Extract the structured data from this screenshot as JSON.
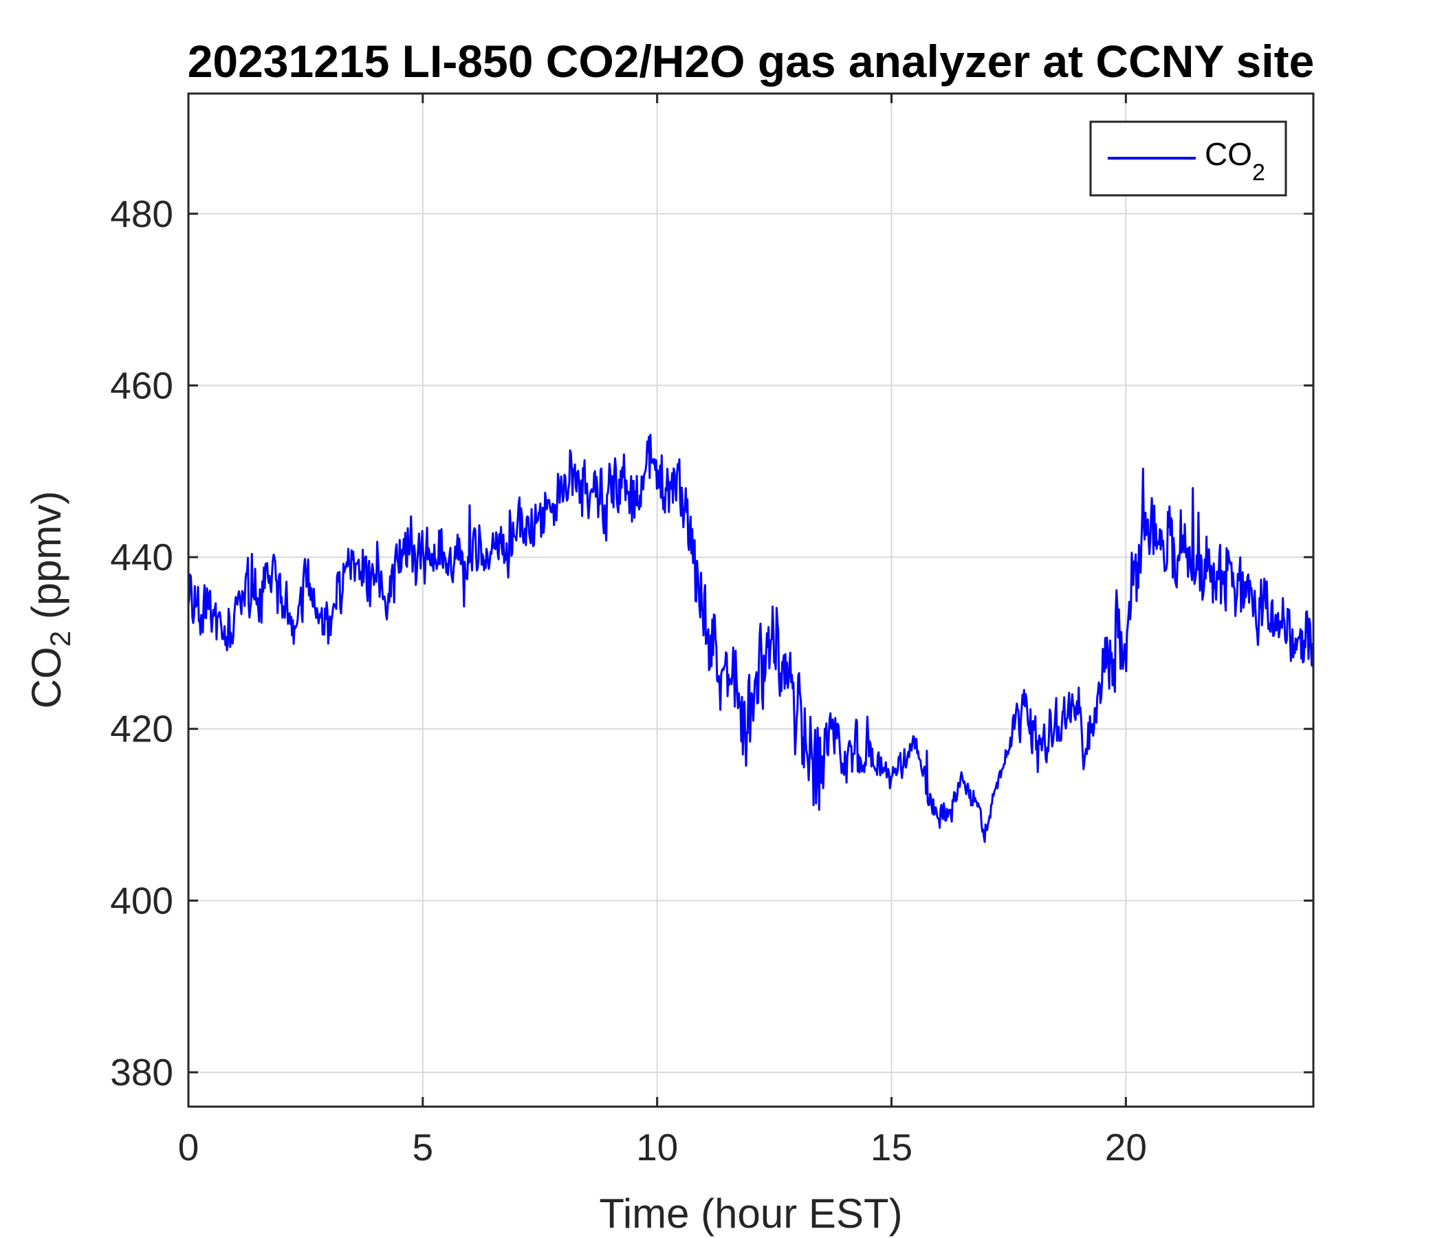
{
  "chart_data": {
    "type": "line",
    "title": "20231215 LI-850 CO2/H2O gas analyzer at CCNY site",
    "xlabel": "Time (hour EST)",
    "ylabel": {
      "main": "CO",
      "sub": "2",
      "rest": " (ppmv)"
    },
    "xlim": [
      0,
      24
    ],
    "ylim": [
      376,
      494
    ],
    "xticks": [
      0,
      5,
      10,
      15,
      20
    ],
    "yticks": [
      380,
      400,
      420,
      440,
      460,
      480
    ],
    "grid": true,
    "legend": {
      "position": "top-right",
      "entries": [
        {
          "main": "CO",
          "sub": "2"
        }
      ]
    },
    "series": [
      {
        "name": "CO2",
        "color": "#0000ff",
        "x": [
          0,
          0.25,
          0.5,
          0.75,
          1,
          1.25,
          1.5,
          1.75,
          2,
          2.25,
          2.5,
          2.75,
          3,
          3.25,
          3.5,
          3.75,
          4,
          4.25,
          4.5,
          4.75,
          5,
          5.25,
          5.5,
          5.75,
          6,
          6.25,
          6.5,
          6.75,
          7,
          7.25,
          7.5,
          7.75,
          8,
          8.25,
          8.5,
          8.75,
          9,
          9.25,
          9.5,
          9.75,
          10,
          10.25,
          10.5,
          10.75,
          11,
          11.25,
          11.5,
          11.75,
          12,
          12.25,
          12.5,
          12.75,
          13,
          13.25,
          13.5,
          13.75,
          14,
          14.25,
          14.5,
          14.75,
          15,
          15.25,
          15.5,
          15.75,
          16,
          16.25,
          16.5,
          16.75,
          17,
          17.25,
          17.5,
          17.75,
          18,
          18.25,
          18.5,
          18.75,
          19,
          19.25,
          19.5,
          19.75,
          20,
          20.25,
          20.5,
          20.75,
          21,
          21.25,
          21.5,
          21.75,
          22,
          22.25,
          22.5,
          22.75,
          23,
          23.25,
          23.5,
          23.75,
          24
        ],
        "y": [
          435,
          432,
          434,
          430,
          433,
          437,
          435,
          438,
          436,
          434,
          437,
          433,
          432,
          436,
          440,
          438,
          439,
          436,
          441,
          440,
          442,
          440,
          439,
          441,
          438,
          443,
          440,
          442,
          444,
          443,
          445,
          446,
          448,
          449,
          448,
          447,
          447,
          450,
          446,
          449,
          450,
          448,
          447,
          442,
          432,
          427,
          425,
          423,
          424,
          428,
          430,
          427,
          420,
          418,
          417,
          419,
          416,
          418,
          417,
          415,
          414,
          416,
          419,
          413,
          409,
          411,
          414,
          412,
          408,
          413,
          418,
          424,
          420,
          417,
          420,
          421,
          421,
          418,
          427,
          430,
          431,
          440,
          445,
          442,
          440,
          441,
          439,
          438,
          436,
          437,
          436,
          435,
          434,
          433,
          431,
          432,
          430
        ]
      }
    ]
  }
}
